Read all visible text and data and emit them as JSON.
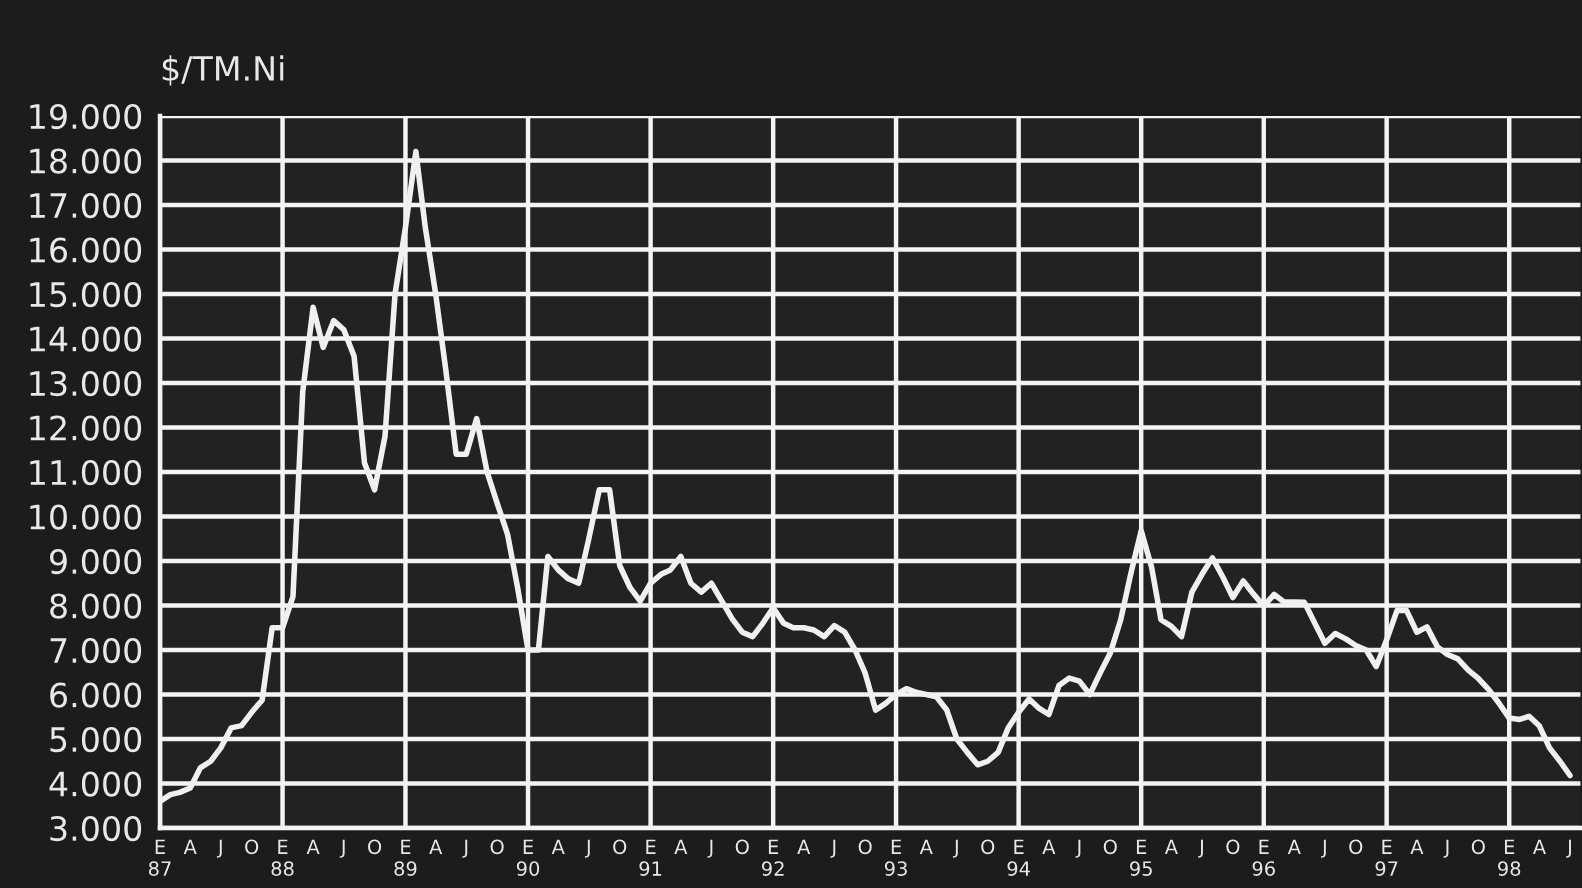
{
  "chart_data": {
    "type": "line",
    "ylabel": "$/TM.Ni",
    "x": [
      "1987-01",
      "1987-02",
      "1987-03",
      "1987-04",
      "1987-05",
      "1987-06",
      "1987-07",
      "1987-08",
      "1987-09",
      "1987-10",
      "1987-11",
      "1987-12",
      "1988-01",
      "1988-02",
      "1988-03",
      "1988-04",
      "1988-05",
      "1988-06",
      "1988-07",
      "1988-08",
      "1988-09",
      "1988-10",
      "1988-11",
      "1988-12",
      "1989-01",
      "1989-02",
      "1989-03",
      "1989-04",
      "1989-05",
      "1989-06",
      "1989-07",
      "1989-08",
      "1989-09",
      "1989-10",
      "1989-11",
      "1989-12",
      "1990-01",
      "1990-02",
      "1990-03",
      "1990-04",
      "1990-05",
      "1990-06",
      "1990-07",
      "1990-08",
      "1990-09",
      "1990-10",
      "1990-11",
      "1990-12",
      "1991-01",
      "1991-02",
      "1991-03",
      "1991-04",
      "1991-05",
      "1991-06",
      "1991-07",
      "1991-08",
      "1991-09",
      "1991-10",
      "1991-11",
      "1991-12",
      "1992-01",
      "1992-02",
      "1992-03",
      "1992-04",
      "1992-05",
      "1992-06",
      "1992-07",
      "1992-08",
      "1992-09",
      "1992-10",
      "1992-11",
      "1992-12",
      "1993-01",
      "1993-02",
      "1993-03",
      "1993-04",
      "1993-05",
      "1993-06",
      "1993-07",
      "1993-08",
      "1993-09",
      "1993-10",
      "1993-11",
      "1993-12",
      "1994-01",
      "1994-02",
      "1994-03",
      "1994-04",
      "1994-05",
      "1994-06",
      "1994-07",
      "1994-08",
      "1994-09",
      "1994-10",
      "1994-11",
      "1994-12",
      "1995-01",
      "1995-02",
      "1995-03",
      "1995-04",
      "1995-05",
      "1995-06",
      "1995-07",
      "1995-08",
      "1995-09",
      "1995-10",
      "1995-11",
      "1995-12",
      "1996-01",
      "1996-02",
      "1996-03",
      "1996-04",
      "1996-05",
      "1996-06",
      "1996-07",
      "1996-08",
      "1996-09",
      "1996-10",
      "1996-11",
      "1996-12",
      "1997-01",
      "1997-02",
      "1997-03",
      "1997-04",
      "1997-05",
      "1997-06",
      "1997-07",
      "1997-08",
      "1997-09",
      "1997-10",
      "1997-11",
      "1997-12",
      "1998-01",
      "1998-02",
      "1998-03",
      "1998-04",
      "1998-05",
      "1998-06",
      "1998-07"
    ],
    "series": [
      {
        "color": "#f0f0f0",
        "values": [
          3600,
          3750,
          3800,
          3900,
          4350,
          4500,
          4800,
          5250,
          5300,
          5600,
          5870,
          7500,
          7500,
          8200,
          12800,
          14700,
          13800,
          14400,
          14200,
          13600,
          11200,
          10600,
          11800,
          15000,
          16500,
          18200,
          16500,
          15000,
          13300,
          11400,
          11400,
          12200,
          11000,
          10300,
          9600,
          8400,
          7000,
          7000,
          9100,
          8800,
          8600,
          8500,
          9500,
          10600,
          10600,
          8900,
          8400,
          8100,
          8500,
          8700,
          8800,
          9100,
          8500,
          8300,
          8500,
          8100,
          7700,
          7400,
          7300,
          7600,
          7950,
          7600,
          7500,
          7500,
          7450,
          7300,
          7550,
          7400,
          7000,
          6480,
          5650,
          5800,
          6000,
          6130,
          6050,
          6000,
          5950,
          5650,
          5000,
          4700,
          4420,
          4500,
          4700,
          5250,
          5600,
          5900,
          5700,
          5550,
          6200,
          6370,
          6300,
          6000,
          6490,
          6930,
          7680,
          8710,
          9680,
          8860,
          7680,
          7530,
          7300,
          8300,
          8700,
          9070,
          8640,
          8180,
          8550,
          8260,
          7990,
          8250,
          8080,
          8080,
          8070,
          7600,
          7150,
          7370,
          7250,
          7100,
          7000,
          6630,
          7230,
          7890,
          7890,
          7400,
          7520,
          7070,
          6900,
          6800,
          6550,
          6360,
          6110,
          5810,
          5470,
          5440,
          5510,
          5290,
          4800,
          4500,
          4180
        ]
      }
    ],
    "xlim": [
      "1987-01",
      "1998-08"
    ],
    "xticks": [
      {
        "value": "1987-01",
        "label": "E\n87"
      },
      {
        "value": "1987-04",
        "label": "A"
      },
      {
        "value": "1987-07",
        "label": "J"
      },
      {
        "value": "1987-10",
        "label": "O"
      },
      {
        "value": "1988-01",
        "label": "E\n88"
      },
      {
        "value": "1988-04",
        "label": "A"
      },
      {
        "value": "1988-07",
        "label": "J"
      },
      {
        "value": "1988-10",
        "label": "O"
      },
      {
        "value": "1989-01",
        "label": "E\n89"
      },
      {
        "value": "1989-04",
        "label": "A"
      },
      {
        "value": "1989-07",
        "label": "J"
      },
      {
        "value": "1989-10",
        "label": "O"
      },
      {
        "value": "1990-01",
        "label": "E\n90"
      },
      {
        "value": "1990-04",
        "label": "A"
      },
      {
        "value": "1990-07",
        "label": "J"
      },
      {
        "value": "1990-10",
        "label": "O"
      },
      {
        "value": "1991-01",
        "label": "E\n91"
      },
      {
        "value": "1991-04",
        "label": "A"
      },
      {
        "value": "1991-07",
        "label": "J"
      },
      {
        "value": "1991-10",
        "label": "O"
      },
      {
        "value": "1992-01",
        "label": "E\n92"
      },
      {
        "value": "1992-04",
        "label": "A"
      },
      {
        "value": "1992-07",
        "label": "J"
      },
      {
        "value": "1992-10",
        "label": "O"
      },
      {
        "value": "1993-01",
        "label": "E\n93"
      },
      {
        "value": "1993-04",
        "label": "A"
      },
      {
        "value": "1993-07",
        "label": "J"
      },
      {
        "value": "1993-10",
        "label": "O"
      },
      {
        "value": "1994-01",
        "label": "E\n94"
      },
      {
        "value": "1994-04",
        "label": "A"
      },
      {
        "value": "1994-07",
        "label": "J"
      },
      {
        "value": "1994-10",
        "label": "O"
      },
      {
        "value": "1995-01",
        "label": "E\n95"
      },
      {
        "value": "1995-04",
        "label": "A"
      },
      {
        "value": "1995-07",
        "label": "J"
      },
      {
        "value": "1995-10",
        "label": "O"
      },
      {
        "value": "1996-01",
        "label": "E\n96"
      },
      {
        "value": "1996-04",
        "label": "A"
      },
      {
        "value": "1996-07",
        "label": "J"
      },
      {
        "value": "1996-10",
        "label": "O"
      },
      {
        "value": "1997-01",
        "label": "E\n97"
      },
      {
        "value": "1997-04",
        "label": "A"
      },
      {
        "value": "1997-07",
        "label": "J"
      },
      {
        "value": "1997-10",
        "label": "O"
      },
      {
        "value": "1998-01",
        "label": "E\n98"
      },
      {
        "value": "1998-04",
        "label": "A"
      },
      {
        "value": "1998-07",
        "label": "J"
      }
    ],
    "ylim": [
      3000,
      19000
    ],
    "yticks": [
      {
        "value": 3000,
        "label": "3.000"
      },
      {
        "value": 4000,
        "label": "4.000"
      },
      {
        "value": 5000,
        "label": "5.000"
      },
      {
        "value": 6000,
        "label": "6.000"
      },
      {
        "value": 7000,
        "label": "7.000"
      },
      {
        "value": 8000,
        "label": "8.000"
      },
      {
        "value": 9000,
        "label": "9.000"
      },
      {
        "value": 10000,
        "label": "10.000"
      },
      {
        "value": 11000,
        "label": "11.000"
      },
      {
        "value": 12000,
        "label": "12.000"
      },
      {
        "value": 13000,
        "label": "13.000"
      },
      {
        "value": 14000,
        "label": "14.000"
      },
      {
        "value": 15000,
        "label": "15.000"
      },
      {
        "value": 16000,
        "label": "16.000"
      },
      {
        "value": 17000,
        "label": "17.000"
      },
      {
        "value": 18000,
        "label": "18.000"
      },
      {
        "value": 19000,
        "label": "19.000"
      }
    ],
    "grid": true,
    "marker": "none",
    "line_style": "solid",
    "legend": false
  }
}
